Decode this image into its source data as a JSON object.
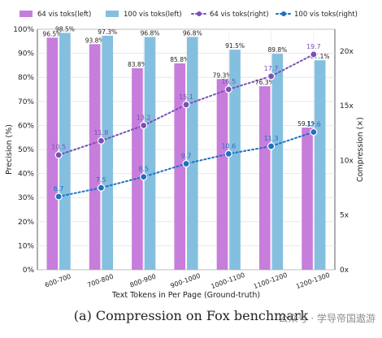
{
  "chart_data": {
    "type": "bar",
    "categories": [
      "600-700",
      "700-800",
      "800-900",
      "900-1000",
      "1000-1100",
      "1100-1200",
      "1200-1300"
    ],
    "xlabel": "Text Tokens in Per Page (Ground-truth)",
    "ylabel_left": "Precision (%)",
    "ylabel_right": "Compression (×)",
    "ylim_left": [
      0,
      100
    ],
    "ylim_right": [
      0,
      22
    ],
    "yticks_left": [
      "0%",
      "10%",
      "20%",
      "30%",
      "40%",
      "50%",
      "60%",
      "70%",
      "80%",
      "90%",
      "100%"
    ],
    "yticks_right": [
      "0x",
      "5x",
      "10x",
      "15x",
      "20x"
    ],
    "grid": true,
    "legend_position": "top",
    "bar_series": [
      {
        "name": "64 vis toks(left)",
        "axis": "left",
        "color": "#c77ddb",
        "values": [
          96.5,
          93.8,
          83.8,
          85.8,
          79.3,
          76.3,
          59.1
        ],
        "labels": [
          "96.5%",
          "93.8%",
          "83.8%",
          "85.8%",
          "79.3%",
          "76.3%",
          "59.1%"
        ]
      },
      {
        "name": "100 vis toks(left)",
        "axis": "left",
        "color": "#84bfe0",
        "values": [
          98.5,
          97.3,
          96.8,
          96.8,
          91.5,
          89.8,
          87.1
        ],
        "labels": [
          "98.5%",
          "97.3%",
          "96.8%",
          "96.8%",
          "91.5%",
          "89.8%",
          "87.1%"
        ]
      }
    ],
    "line_series": [
      {
        "name": "64 vis toks(right)",
        "axis": "right",
        "color": "#7b4fb6",
        "values": [
          10.5,
          11.8,
          13.2,
          15.1,
          16.5,
          17.7,
          19.7
        ],
        "labels": [
          "10.5",
          "11.8",
          "13.2",
          "15.1",
          "16.5",
          "17.7",
          "19.7"
        ]
      },
      {
        "name": "100 vis toks(right)",
        "axis": "right",
        "color": "#1f6fc2",
        "values": [
          6.7,
          7.5,
          8.5,
          9.7,
          10.6,
          11.3,
          12.6
        ],
        "labels": [
          "6.7",
          "7.5",
          "8.5",
          "9.7",
          "10.6",
          "11.3",
          "12.6"
        ]
      }
    ]
  },
  "caption": "(a)  Compression on Fox benchmark",
  "watermark": "公众号 · 学导帝国遨游"
}
